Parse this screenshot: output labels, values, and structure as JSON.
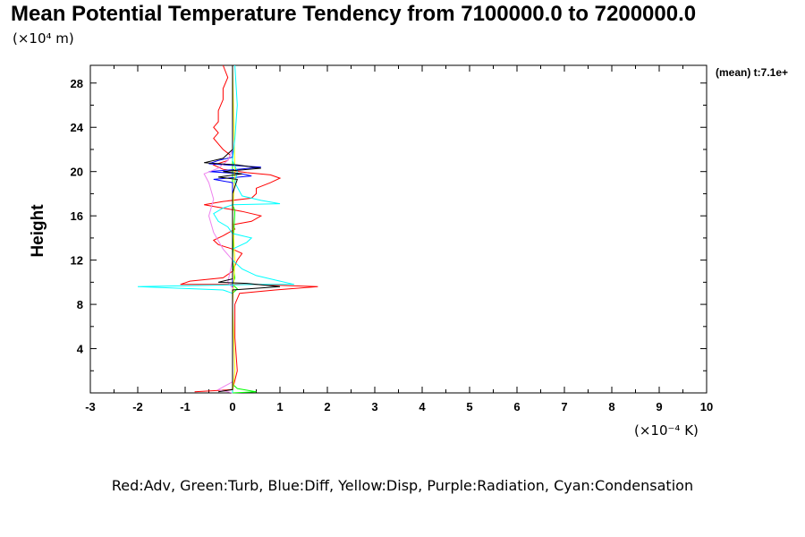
{
  "chart_data": {
    "type": "line",
    "title": "Mean Potential Temperature Tendency from 7100000.0 to 7200000.0",
    "ylabel": "Height",
    "yunit": "(×10⁴ m)",
    "xunit": "(×10⁻⁴ K)",
    "side_label": "(mean) t:7.1e+",
    "legend_text": "Red:Adv, Green:Turb, Blue:Diff, Yellow:Disp, Purple:Radiation, Cyan:Condensation",
    "xlim": [
      -3,
      10
    ],
    "ylim": [
      0,
      29.6
    ],
    "xticks": [
      -3,
      -2,
      -1,
      0,
      1,
      2,
      3,
      4,
      5,
      6,
      7,
      8,
      9,
      10
    ],
    "yticks": [
      4,
      8,
      12,
      16,
      20,
      24,
      28
    ],
    "grid": false,
    "series": [
      {
        "name": "Adv",
        "color": "#ff0000",
        "points": [
          [
            -0.8,
            0.1
          ],
          [
            0.0,
            0.3
          ],
          [
            0.1,
            2
          ],
          [
            0.05,
            5
          ],
          [
            0.05,
            8
          ],
          [
            0.15,
            9.0
          ],
          [
            0.9,
            9.3
          ],
          [
            1.8,
            9.6
          ],
          [
            0.4,
            9.8
          ],
          [
            -1.1,
            9.8
          ],
          [
            -0.9,
            10.1
          ],
          [
            -0.2,
            10.4
          ],
          [
            0.0,
            11.0
          ],
          [
            0.1,
            12.0
          ],
          [
            0.2,
            12.6
          ],
          [
            0.0,
            13.0
          ],
          [
            -0.3,
            13.4
          ],
          [
            -0.4,
            13.8
          ],
          [
            -0.2,
            14.2
          ],
          [
            0.05,
            14.8
          ],
          [
            0.0,
            15.2
          ],
          [
            0.4,
            15.5
          ],
          [
            0.6,
            16.0
          ],
          [
            0.2,
            16.4
          ],
          [
            -0.2,
            16.7
          ],
          [
            -0.6,
            17.0
          ],
          [
            -0.2,
            17.3
          ],
          [
            0.4,
            17.6
          ],
          [
            0.5,
            18.0
          ],
          [
            0.5,
            18.5
          ],
          [
            0.8,
            19.0
          ],
          [
            1.0,
            19.4
          ],
          [
            0.8,
            19.7
          ],
          [
            0.3,
            19.9
          ],
          [
            -0.2,
            20.2
          ],
          [
            -0.4,
            20.6
          ],
          [
            -0.1,
            21.0
          ],
          [
            -0.05,
            21.5
          ],
          [
            -0.2,
            22.0
          ],
          [
            -0.3,
            22.5
          ],
          [
            -0.4,
            23.0
          ],
          [
            -0.3,
            23.5
          ],
          [
            -0.4,
            24.0
          ],
          [
            -0.3,
            24.5
          ],
          [
            -0.3,
            25.5
          ],
          [
            -0.2,
            26.5
          ],
          [
            -0.2,
            27.5
          ],
          [
            -0.1,
            28.5
          ],
          [
            -0.2,
            29.6
          ]
        ]
      },
      {
        "name": "Turb",
        "color": "#00ff00",
        "points": [
          [
            0.0,
            0.0
          ],
          [
            0.5,
            0.1
          ],
          [
            0.1,
            0.4
          ],
          [
            0.0,
            0.8
          ],
          [
            0.0,
            5
          ],
          [
            0.0,
            8.0
          ],
          [
            0.0,
            9.0
          ],
          [
            0.1,
            9.4
          ],
          [
            0.0,
            9.8
          ],
          [
            0.05,
            10.4
          ],
          [
            0.0,
            12.0
          ],
          [
            0.05,
            16.5
          ],
          [
            0.0,
            17.0
          ],
          [
            0.0,
            29.6
          ]
        ]
      },
      {
        "name": "Diff",
        "color": "#0000ff",
        "points": [
          [
            0.0,
            0.0
          ],
          [
            0.0,
            18.0
          ],
          [
            0.0,
            19.0
          ],
          [
            -0.4,
            19.3
          ],
          [
            0.4,
            19.6
          ],
          [
            0.2,
            19.8
          ],
          [
            -0.5,
            20.0
          ],
          [
            0.1,
            20.2
          ],
          [
            0.6,
            20.4
          ],
          [
            -0.5,
            20.7
          ],
          [
            -0.3,
            21.0
          ],
          [
            0.0,
            21.3
          ],
          [
            0.0,
            29.6
          ]
        ]
      },
      {
        "name": "Disp",
        "color": "#ffff00",
        "points": [
          [
            0.0,
            0.0
          ],
          [
            0.05,
            2
          ],
          [
            0.0,
            8
          ],
          [
            0.05,
            12
          ],
          [
            0.0,
            16
          ],
          [
            0.05,
            20
          ],
          [
            0.0,
            29.6
          ]
        ]
      },
      {
        "name": "Radiation",
        "color": "#ee82ee",
        "points": [
          [
            0.0,
            0.0
          ],
          [
            -0.3,
            0.3
          ],
          [
            0.0,
            1.0
          ],
          [
            0.0,
            8.0
          ],
          [
            0.0,
            9.5
          ],
          [
            -0.1,
            10.0
          ],
          [
            0.0,
            12.0
          ],
          [
            -0.2,
            13.0
          ],
          [
            -0.4,
            14.5
          ],
          [
            -0.5,
            16.0
          ],
          [
            -0.4,
            17.5
          ],
          [
            -0.5,
            19.0
          ],
          [
            -0.6,
            19.8
          ],
          [
            -0.3,
            20.3
          ],
          [
            -0.1,
            21.0
          ],
          [
            0.0,
            22.0
          ],
          [
            0.0,
            29.6
          ]
        ]
      },
      {
        "name": "Condensation",
        "color": "#00ffff",
        "points": [
          [
            0.0,
            0.0
          ],
          [
            0.0,
            8.0
          ],
          [
            0.0,
            9.0
          ],
          [
            -0.2,
            9.3
          ],
          [
            -2.0,
            9.6
          ],
          [
            0.5,
            9.8
          ],
          [
            1.3,
            9.8
          ],
          [
            0.9,
            10.2
          ],
          [
            0.5,
            10.6
          ],
          [
            0.2,
            11.2
          ],
          [
            0.0,
            12.0
          ],
          [
            0.0,
            13.0
          ],
          [
            0.3,
            13.6
          ],
          [
            0.4,
            14.0
          ],
          [
            0.0,
            14.4
          ],
          [
            -0.1,
            15.0
          ],
          [
            -0.3,
            15.5
          ],
          [
            -0.4,
            16.2
          ],
          [
            -0.2,
            16.7
          ],
          [
            0.0,
            17.0
          ],
          [
            1.0,
            17.1
          ],
          [
            0.6,
            17.4
          ],
          [
            0.2,
            17.8
          ],
          [
            0.05,
            19.0
          ],
          [
            0.1,
            20.0
          ],
          [
            0.0,
            21.0
          ],
          [
            0.05,
            23.0
          ],
          [
            0.1,
            26.0
          ],
          [
            0.05,
            29.6
          ]
        ]
      },
      {
        "name": "Total",
        "color": "#000000",
        "points": [
          [
            -0.3,
            0.1
          ],
          [
            0.0,
            0.3
          ],
          [
            0.0,
            9.0
          ],
          [
            0.0,
            9.3
          ],
          [
            1.0,
            9.6
          ],
          [
            0.3,
            9.9
          ],
          [
            -0.3,
            10.0
          ],
          [
            0.0,
            10.3
          ],
          [
            0.0,
            18.0
          ],
          [
            0.1,
            19.3
          ],
          [
            -0.3,
            19.5
          ],
          [
            0.2,
            19.8
          ],
          [
            -0.2,
            20.0
          ],
          [
            0.6,
            20.3
          ],
          [
            0.1,
            20.6
          ],
          [
            -0.6,
            20.8
          ],
          [
            -0.2,
            21.2
          ],
          [
            0.0,
            22.0
          ],
          [
            0.0,
            29.6
          ]
        ]
      }
    ]
  }
}
